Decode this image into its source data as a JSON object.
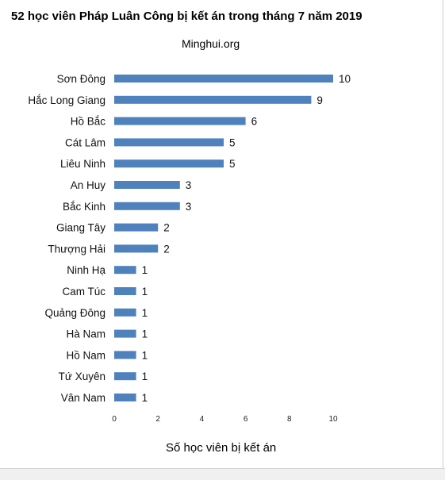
{
  "chart_data": {
    "type": "bar",
    "orientation": "horizontal",
    "title": "52 học viên Pháp Luân Công bị kết án trong tháng 7 năm 2019",
    "subtitle": "Minghui.org",
    "xlabel": "Số học viên bị kết án",
    "ylabel": "",
    "xlim": [
      0,
      10
    ],
    "xticks": [
      0,
      2,
      4,
      6,
      8,
      10
    ],
    "grid": false,
    "bar_color": "#4f81bd",
    "categories": [
      "Sơn Đông",
      "Hắc Long Giang",
      "Hồ Bắc",
      "Cát Lâm",
      "Liêu Ninh",
      "An Huy",
      "Bắc Kinh",
      "Giang Tây",
      "Thượng Hải",
      "Ninh Hạ",
      "Cam Túc",
      "Quảng Đông",
      "Hà Nam",
      "Hồ Nam",
      "Tứ Xuyên",
      "Vân Nam"
    ],
    "values": [
      10,
      9,
      6,
      5,
      5,
      3,
      3,
      2,
      2,
      1,
      1,
      1,
      1,
      1,
      1,
      1
    ]
  }
}
